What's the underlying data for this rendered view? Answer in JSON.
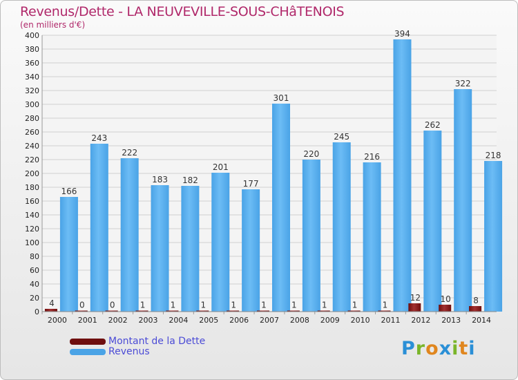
{
  "title": "Revenus/Dette - LA NEUVEVILLE-SOUS-CHâTENOIS",
  "subtitle": "(en milliers d'€)",
  "logo": {
    "text": "Proxiti",
    "letters": [
      {
        "ch": "P",
        "color": "#2a8fd6"
      },
      {
        "ch": "r",
        "color": "#7ab52a"
      },
      {
        "ch": "o",
        "color": "#e0861e"
      },
      {
        "ch": "x",
        "color": "#2a8fd6"
      },
      {
        "ch": "i",
        "color": "#7ab52a"
      },
      {
        "ch": "t",
        "color": "#e0861e"
      },
      {
        "ch": "i",
        "color": "#2a8fd6"
      }
    ]
  },
  "colors": {
    "dette": "#6e0e0e",
    "revenus": "#4aa3e6",
    "grid": "#cfcfcf",
    "title": "#b0286a"
  },
  "chart_data": {
    "type": "bar",
    "title": "Revenus/Dette - LA NEUVEVILLE-SOUS-CHâTENOIS",
    "ylabel": "(en milliers d'€)",
    "xlabel": "",
    "ylim": [
      0,
      400
    ],
    "yticks": [
      0,
      20,
      40,
      60,
      80,
      100,
      120,
      140,
      160,
      180,
      200,
      220,
      240,
      260,
      280,
      300,
      320,
      340,
      360,
      380,
      400
    ],
    "grid": true,
    "legend_position": "bottom-left",
    "categories": [
      "2000",
      "2001",
      "2002",
      "2003",
      "2004",
      "2005",
      "2006",
      "2007",
      "2008",
      "2009",
      "2010",
      "2011",
      "2012",
      "2013",
      "2014"
    ],
    "series": [
      {
        "name": "Montant de la Dette",
        "color": "#6e0e0e",
        "values": [
          4,
          0,
          0,
          1,
          1,
          1,
          1,
          1,
          1,
          1,
          1,
          1,
          12,
          10,
          8
        ]
      },
      {
        "name": "Revenus",
        "color": "#4aa3e6",
        "values": [
          166,
          243,
          222,
          183,
          182,
          201,
          177,
          301,
          220,
          245,
          216,
          394,
          262,
          322,
          218
        ]
      }
    ]
  }
}
